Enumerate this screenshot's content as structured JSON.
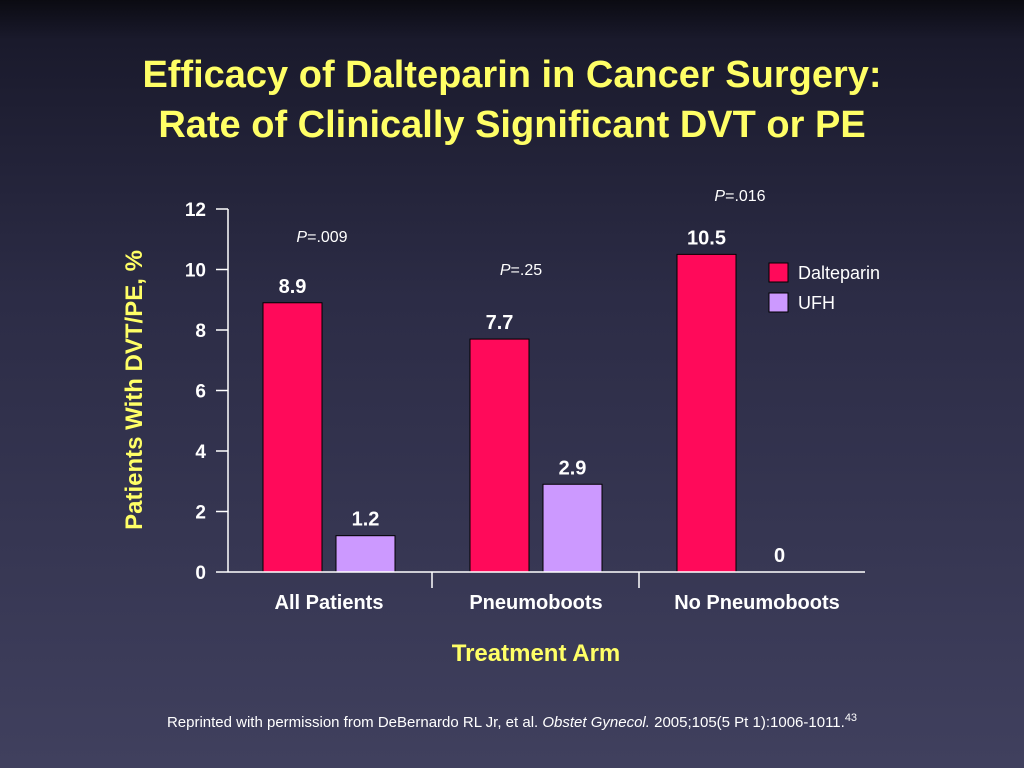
{
  "chart_data": {
    "type": "bar",
    "title_line1": "Efficacy of Dalteparin in Cancer Surgery:",
    "title_line2": "Rate of Clinically Significant DVT or PE",
    "xlabel": "Treatment Arm",
    "ylabel": "Patients With DVT/PE, %",
    "ylim": [
      0,
      12
    ],
    "yticks": [
      "0",
      "2",
      "4",
      "6",
      "8",
      "10",
      "12"
    ],
    "categories": [
      "All Patients",
      "Pneumoboots",
      "No Pneumoboots"
    ],
    "series": [
      {
        "name": "Dalteparin",
        "color": "#ff0a5a",
        "values": [
          8.9,
          7.7,
          10.5
        ],
        "labels": [
          "8.9",
          "7.7",
          "10.5"
        ]
      },
      {
        "name": "UFH",
        "color": "#cc99ff",
        "values": [
          1.2,
          2.9,
          0
        ],
        "labels": [
          "1.2",
          "2.9",
          "0"
        ]
      }
    ],
    "p_values": [
      {
        "prefix": "P",
        "value": "=.009"
      },
      {
        "prefix": "P",
        "value": "=.25"
      },
      {
        "prefix": "P",
        "value": "=.016"
      }
    ],
    "grid": false,
    "legend_position": "right"
  },
  "footer": {
    "text_before": "Reprinted with permission from DeBernardo RL Jr, et al. ",
    "journal": "Obstet Gynecol.",
    "text_after": " 2005;105(5 Pt 1):1006-1011.",
    "ref": "43"
  }
}
